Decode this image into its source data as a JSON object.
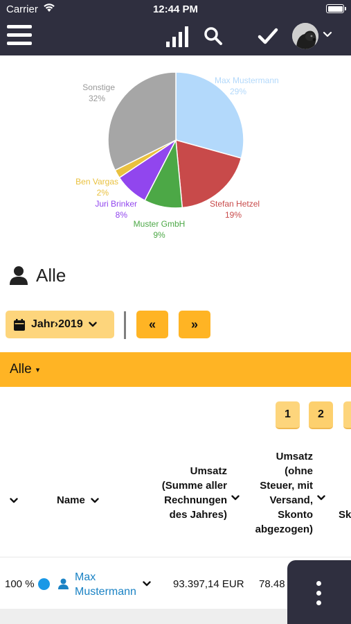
{
  "status_bar": {
    "carrier": "Carrier",
    "time": "12:44 PM"
  },
  "nav": {
    "icons": [
      "menu-icon",
      "bar-chart-icon",
      "search-icon",
      "checkmark-icon",
      "avatar",
      "chevron-down-icon"
    ]
  },
  "chart_data": {
    "type": "pie",
    "slices": [
      {
        "name": "Max Mustermann",
        "percent_label": "29%",
        "value": 29,
        "color": "#b3d9fb"
      },
      {
        "name": "Stefan Hetzel",
        "percent_label": "19%",
        "value": 19,
        "color": "#c84a4a"
      },
      {
        "name": "Muster GmbH",
        "percent_label": "9%",
        "value": 9,
        "color": "#4ca846"
      },
      {
        "name": "Juri Brinker",
        "percent_label": "8%",
        "value": 8,
        "color": "#9146ee"
      },
      {
        "name": "Ben Vargas",
        "percent_label": "2%",
        "value": 2,
        "color": "#e9c13f"
      },
      {
        "name": "Sonstige",
        "percent_label": "32%",
        "value": 32,
        "color": "#a6a6a6"
      }
    ]
  },
  "heading": {
    "title": "Alle"
  },
  "filters": {
    "year_label": "Jahr›2019",
    "prev_label": "«",
    "next_label": "»",
    "group_label": "Alle",
    "group_caret": "▾"
  },
  "pagination": {
    "pages": [
      "1",
      "2",
      ""
    ]
  },
  "table": {
    "headers": {
      "name": "Name",
      "umsatz_total": "Umsatz (Summe aller Rechnungen des Jahres)",
      "umsatz_net": "Umsatz (ohne Steuer, mit Versand, Skonto abgezogen)",
      "truncated": "Sk"
    },
    "rows": [
      {
        "percent": "100 %",
        "name": "Max Mustermann",
        "umsatz_total": "93.397,14 EUR",
        "umsatz_net": "78.48"
      }
    ]
  },
  "colors": {
    "header_bg": "#2f2f3f",
    "accent_orange": "#ffb424",
    "accent_light": "#fdd57c",
    "link_blue": "#1a82c4",
    "status_blue": "#1a98e6"
  }
}
